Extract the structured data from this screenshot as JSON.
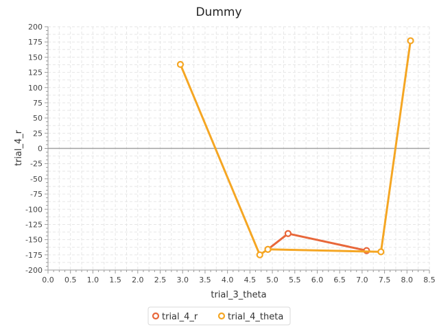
{
  "chart_data": {
    "type": "line",
    "title": "Dummy",
    "xlabel": "trial_3_theta",
    "ylabel": "trial_4_r",
    "xlim": [
      0,
      8.5
    ],
    "ylim": [
      -200,
      200
    ],
    "x_ticks": [
      0,
      0.5,
      1,
      1.5,
      2,
      2.5,
      3,
      3.5,
      4,
      4.5,
      5,
      5.5,
      6,
      6.5,
      7,
      7.5,
      8,
      8.5
    ],
    "x_tick_labels": [
      "0.0",
      "0.5",
      "1.0",
      "1.5",
      "2.0",
      "2.5",
      "3.0",
      "3.5",
      "4.0",
      "4.5",
      "5.0",
      "5.5",
      "6.0",
      "6.5",
      "7.0",
      "7.5",
      "8.0",
      "8.5"
    ],
    "y_ticks": [
      200,
      175,
      150,
      125,
      100,
      75,
      50,
      25,
      0,
      -25,
      -50,
      -75,
      -100,
      -125,
      -150,
      -175,
      -200
    ],
    "y_tick_labels": [
      "200",
      "175",
      "150",
      "125",
      "100",
      "75",
      "50",
      "25",
      "0",
      "-25",
      "-50",
      "-75",
      "-100",
      "-125",
      "-150",
      "-175",
      "-200"
    ],
    "grid": true,
    "zero_line": true,
    "legend_position": "bottom",
    "series": [
      {
        "name": "trial_4_r",
        "color": "#e8673a",
        "points": [
          [
            4.9,
            -166
          ],
          [
            5.35,
            -140
          ],
          [
            7.1,
            -168
          ]
        ]
      },
      {
        "name": "trial_4_theta",
        "color": "#f5a623",
        "points": [
          [
            2.95,
            138
          ],
          [
            4.72,
            -175
          ],
          [
            4.9,
            -166
          ],
          [
            7.42,
            -170
          ],
          [
            8.08,
            177
          ]
        ]
      }
    ]
  }
}
